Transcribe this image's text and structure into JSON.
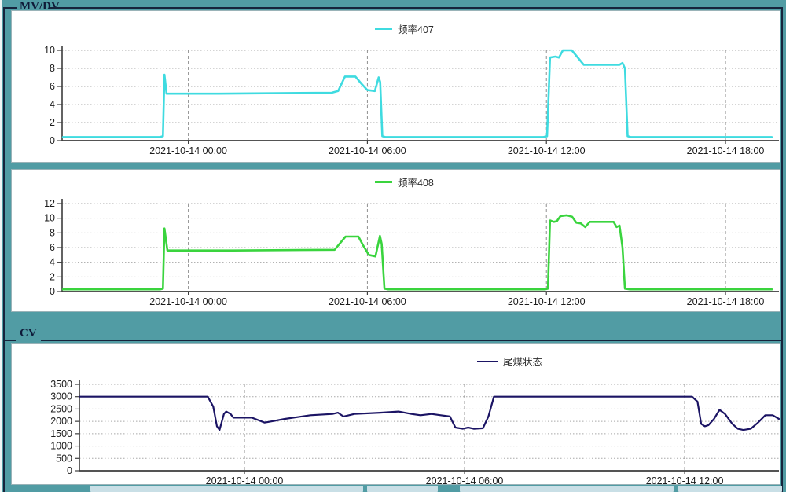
{
  "window": {
    "bg_color": "#519ca4",
    "panel_color": "#ffffff",
    "groupbox_border_color": "#16243c"
  },
  "groups": {
    "mvdv": {
      "label": "MV/DV"
    },
    "cv": {
      "label": "CV"
    }
  },
  "chart_data": [
    {
      "type": "line",
      "title": "频率407",
      "xlabel": "",
      "ylabel": "",
      "grid": true,
      "legend_position": "top-center",
      "ylim": [
        0,
        10
      ],
      "y_ticks": [
        0,
        2,
        4,
        6,
        8,
        10
      ],
      "x_domain_hours": [
        -4.23,
        19.79
      ],
      "x_tick_labels": [
        {
          "hour": 0,
          "label": "2021-10-14 00:00"
        },
        {
          "hour": 6,
          "label": "2021-10-14 06:00"
        },
        {
          "hour": 12,
          "label": "2021-10-14 12:00"
        },
        {
          "hour": 18,
          "label": "2021-10-14 18:00"
        }
      ],
      "series": [
        {
          "name": "频率407",
          "color": "#3fdbe0",
          "points": [
            [
              -4.2,
              0.4
            ],
            [
              -0.95,
              0.4
            ],
            [
              -0.85,
              0.5
            ],
            [
              -0.8,
              7.3
            ],
            [
              -0.73,
              5.2
            ],
            [
              1.0,
              5.2
            ],
            [
              3.0,
              5.25
            ],
            [
              4.8,
              5.3
            ],
            [
              5.02,
              5.5
            ],
            [
              5.25,
              7.1
            ],
            [
              5.6,
              7.1
            ],
            [
              5.8,
              6.3
            ],
            [
              6.0,
              5.6
            ],
            [
              6.25,
              5.5
            ],
            [
              6.38,
              7.0
            ],
            [
              6.43,
              6.5
            ],
            [
              6.5,
              0.5
            ],
            [
              6.6,
              0.4
            ],
            [
              11.9,
              0.4
            ],
            [
              12.02,
              0.5
            ],
            [
              12.12,
              9.2
            ],
            [
              12.3,
              9.3
            ],
            [
              12.42,
              9.2
            ],
            [
              12.55,
              10.0
            ],
            [
              12.85,
              10.0
            ],
            [
              13.1,
              9.0
            ],
            [
              13.25,
              8.4
            ],
            [
              14.45,
              8.4
            ],
            [
              14.55,
              8.6
            ],
            [
              14.63,
              8.0
            ],
            [
              14.72,
              0.5
            ],
            [
              14.82,
              0.4
            ],
            [
              19.55,
              0.4
            ]
          ]
        }
      ]
    },
    {
      "type": "line",
      "title": "频率408",
      "xlabel": "",
      "ylabel": "",
      "grid": true,
      "legend_position": "top-center",
      "ylim": [
        0,
        12
      ],
      "y_ticks": [
        0,
        2,
        4,
        6,
        8,
        10,
        12
      ],
      "x_domain_hours": [
        -4.23,
        19.79
      ],
      "x_tick_labels": [
        {
          "hour": 0,
          "label": "2021-10-14 00:00"
        },
        {
          "hour": 6,
          "label": "2021-10-14 06:00"
        },
        {
          "hour": 12,
          "label": "2021-10-14 12:00"
        },
        {
          "hour": 18,
          "label": "2021-10-14 18:00"
        }
      ],
      "series": [
        {
          "name": "频率408",
          "color": "#3ad43e",
          "points": [
            [
              -4.2,
              0.3
            ],
            [
              -0.95,
              0.3
            ],
            [
              -0.85,
              0.4
            ],
            [
              -0.8,
              8.6
            ],
            [
              -0.7,
              5.6
            ],
            [
              1.5,
              5.6
            ],
            [
              4.9,
              5.7
            ],
            [
              5.27,
              7.5
            ],
            [
              5.7,
              7.5
            ],
            [
              5.87,
              6.2
            ],
            [
              6.05,
              5.0
            ],
            [
              6.27,
              4.8
            ],
            [
              6.42,
              7.6
            ],
            [
              6.48,
              6.5
            ],
            [
              6.57,
              0.4
            ],
            [
              6.7,
              0.3
            ],
            [
              11.95,
              0.3
            ],
            [
              12.05,
              0.4
            ],
            [
              12.12,
              9.7
            ],
            [
              12.25,
              9.5
            ],
            [
              12.35,
              9.6
            ],
            [
              12.47,
              10.3
            ],
            [
              12.68,
              10.4
            ],
            [
              12.86,
              10.2
            ],
            [
              13.0,
              9.4
            ],
            [
              13.15,
              9.3
            ],
            [
              13.3,
              8.8
            ],
            [
              13.45,
              9.5
            ],
            [
              14.25,
              9.5
            ],
            [
              14.35,
              8.8
            ],
            [
              14.45,
              9.0
            ],
            [
              14.55,
              6.0
            ],
            [
              14.63,
              0.4
            ],
            [
              14.8,
              0.3
            ],
            [
              19.55,
              0.3
            ]
          ]
        }
      ]
    },
    {
      "type": "line",
      "title": "尾煤状态",
      "xlabel": "",
      "ylabel": "",
      "grid": true,
      "legend_position": "top-center",
      "ylim": [
        0,
        3500
      ],
      "y_ticks": [
        0,
        500,
        1000,
        1500,
        2000,
        2500,
        3000,
        3500
      ],
      "x_domain_hours": [
        -4.5,
        14.57
      ],
      "x_tick_labels": [
        {
          "hour": 0,
          "label": "2021-10-14 00:00"
        },
        {
          "hour": 6,
          "label": "2021-10-14 06:00"
        },
        {
          "hour": 12,
          "label": "2021-10-14 12:00"
        }
      ],
      "series": [
        {
          "name": "尾煤状态",
          "color": "#1b1464",
          "points": [
            [
              -4.5,
              3000
            ],
            [
              -1.0,
              3000
            ],
            [
              -0.85,
              2600
            ],
            [
              -0.75,
              1800
            ],
            [
              -0.68,
              1650
            ],
            [
              -0.56,
              2300
            ],
            [
              -0.5,
              2400
            ],
            [
              -0.38,
              2300
            ],
            [
              -0.3,
              2150
            ],
            [
              0.2,
              2150
            ],
            [
              0.55,
              1950
            ],
            [
              0.75,
              2000
            ],
            [
              1.1,
              2100
            ],
            [
              1.8,
              2250
            ],
            [
              2.4,
              2300
            ],
            [
              2.55,
              2350
            ],
            [
              2.7,
              2200
            ],
            [
              3.0,
              2300
            ],
            [
              3.7,
              2350
            ],
            [
              4.2,
              2400
            ],
            [
              4.55,
              2300
            ],
            [
              4.8,
              2250
            ],
            [
              5.1,
              2300
            ],
            [
              5.35,
              2250
            ],
            [
              5.6,
              2200
            ],
            [
              5.75,
              1750
            ],
            [
              5.95,
              1700
            ],
            [
              6.1,
              1750
            ],
            [
              6.25,
              1700
            ],
            [
              6.5,
              1720
            ],
            [
              6.65,
              2200
            ],
            [
              6.8,
              3000
            ],
            [
              12.2,
              3000
            ],
            [
              12.35,
              2800
            ],
            [
              12.45,
              1900
            ],
            [
              12.55,
              1800
            ],
            [
              12.65,
              1850
            ],
            [
              12.8,
              2100
            ],
            [
              12.95,
              2470
            ],
            [
              13.1,
              2300
            ],
            [
              13.3,
              1900
            ],
            [
              13.45,
              1700
            ],
            [
              13.6,
              1650
            ],
            [
              13.8,
              1700
            ],
            [
              14.0,
              1950
            ],
            [
              14.2,
              2250
            ],
            [
              14.4,
              2250
            ],
            [
              14.57,
              2100
            ]
          ]
        }
      ]
    }
  ],
  "style": {
    "h_grid_color": "#a8a8a8",
    "v_grid_color": "#8f8f8f",
    "axis_color": "#3c3c3c",
    "tick_text_color": "#1c1c1c"
  }
}
